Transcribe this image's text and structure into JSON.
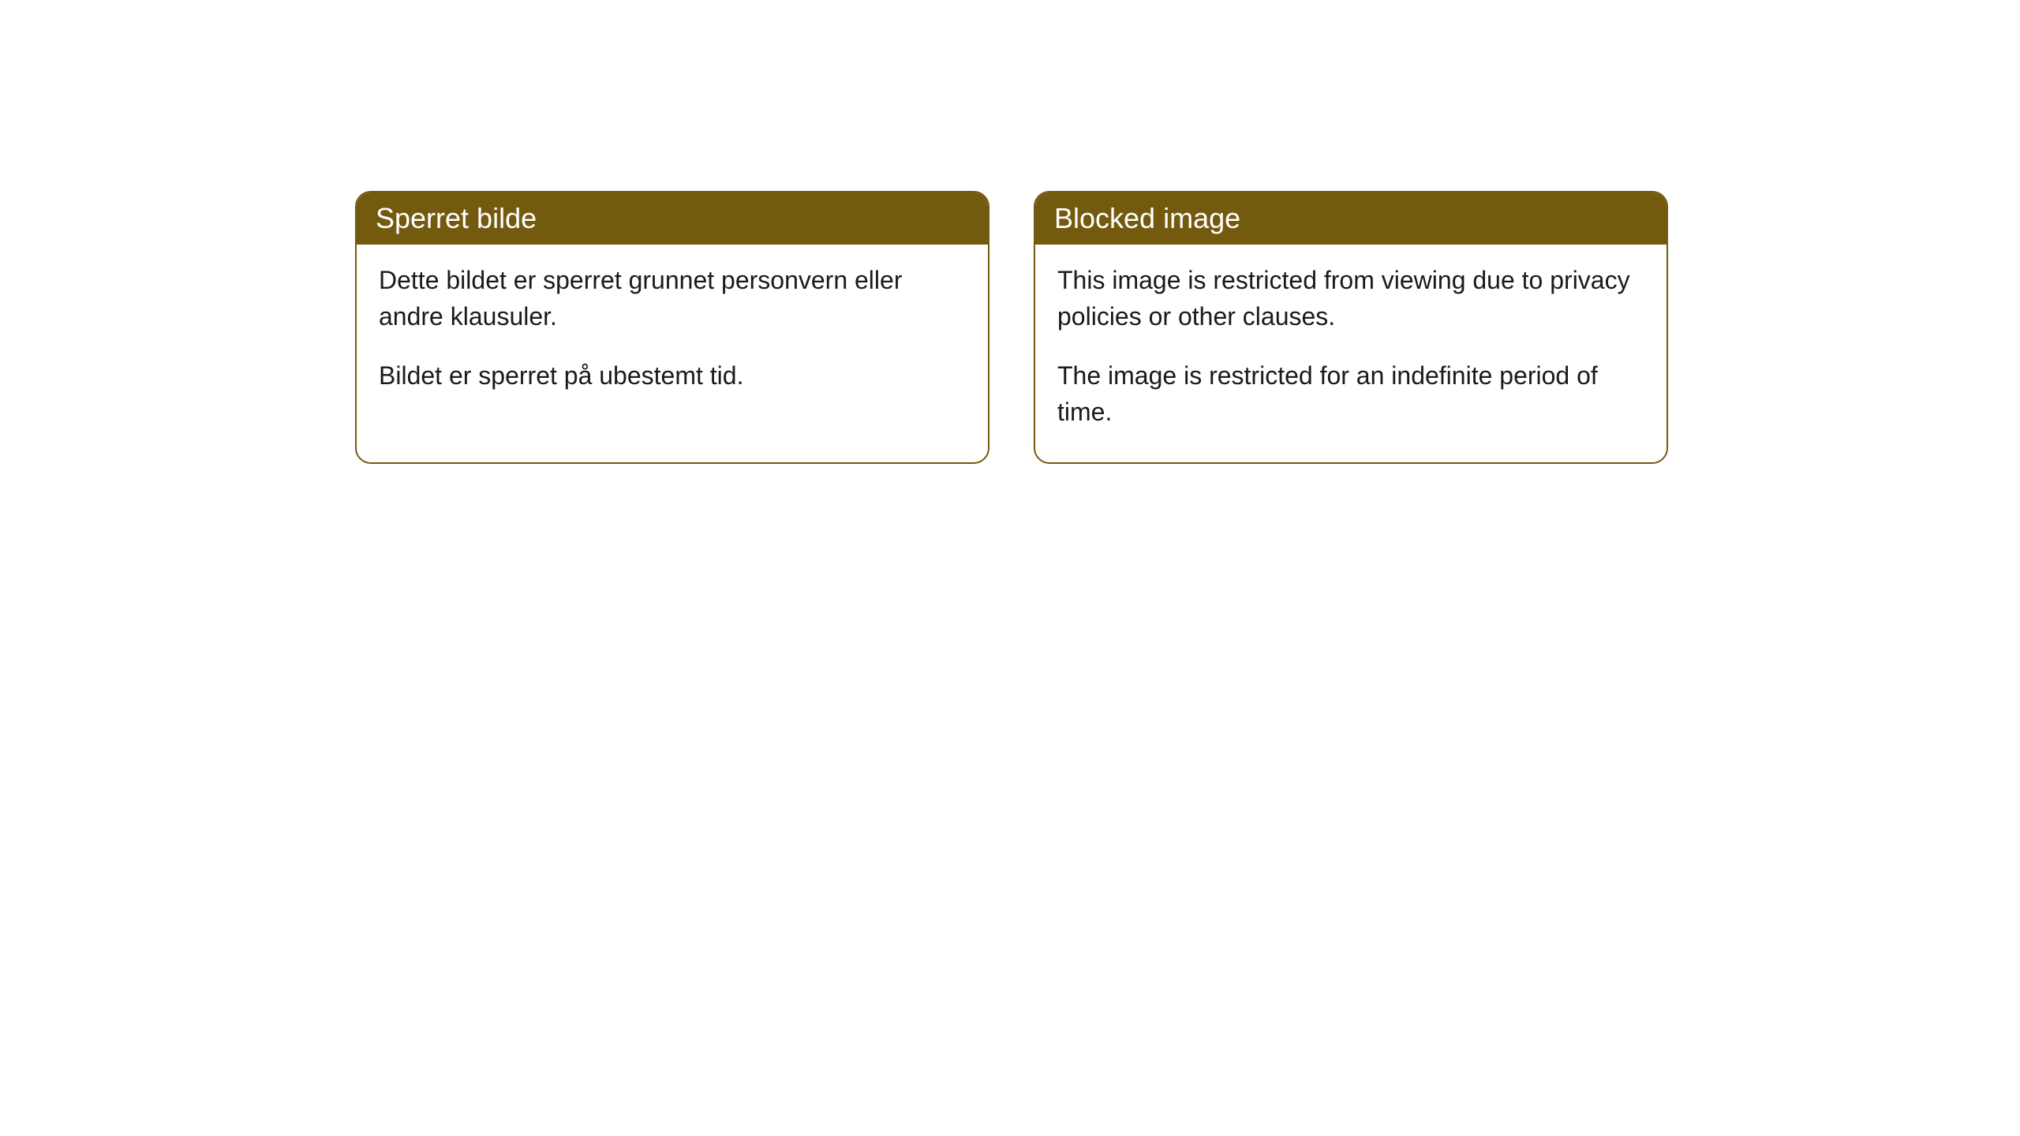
{
  "cards": [
    {
      "title": "Sperret bilde",
      "paragraph1": "Dette bildet er sperret grunnet personvern eller andre klausuler.",
      "paragraph2": "Bildet er sperret på ubestemt tid."
    },
    {
      "title": "Blocked image",
      "paragraph1": "This image is restricted from viewing due to privacy policies or other clauses.",
      "paragraph2": "The image is restricted for an indefinite period of time."
    }
  ],
  "styling": {
    "header_background": "#745a0f",
    "header_text_color": "#ffffff",
    "border_color": "#745a0f",
    "body_background": "#ffffff",
    "body_text_color": "#1a1a1a",
    "border_radius": 20,
    "header_fontsize": 36,
    "body_fontsize": 32
  }
}
